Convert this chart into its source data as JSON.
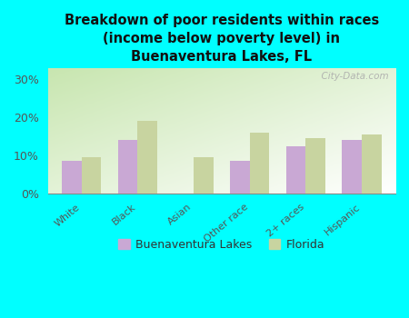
{
  "title": "Breakdown of poor residents within races\n(income below poverty level) in\nBuenaventura Lakes, FL",
  "categories": [
    "White",
    "Black",
    "Asian",
    "Other race",
    "2+ races",
    "Hispanic"
  ],
  "buenaventura_values": [
    8.5,
    14.0,
    0.0,
    8.5,
    12.5,
    14.0
  ],
  "florida_values": [
    9.5,
    19.0,
    9.5,
    16.0,
    14.5,
    15.5
  ],
  "bar_color_bl": "#c9a8d4",
  "bar_color_fl": "#c8d4a0",
  "bg_color": "#00ffff",
  "legend_label_bl": "Buenaventura Lakes",
  "legend_label_fl": "Florida",
  "yticks": [
    0,
    10,
    20,
    30
  ],
  "ylim": [
    0,
    33
  ],
  "bar_width": 0.35,
  "watermark": "  City-Data.com"
}
